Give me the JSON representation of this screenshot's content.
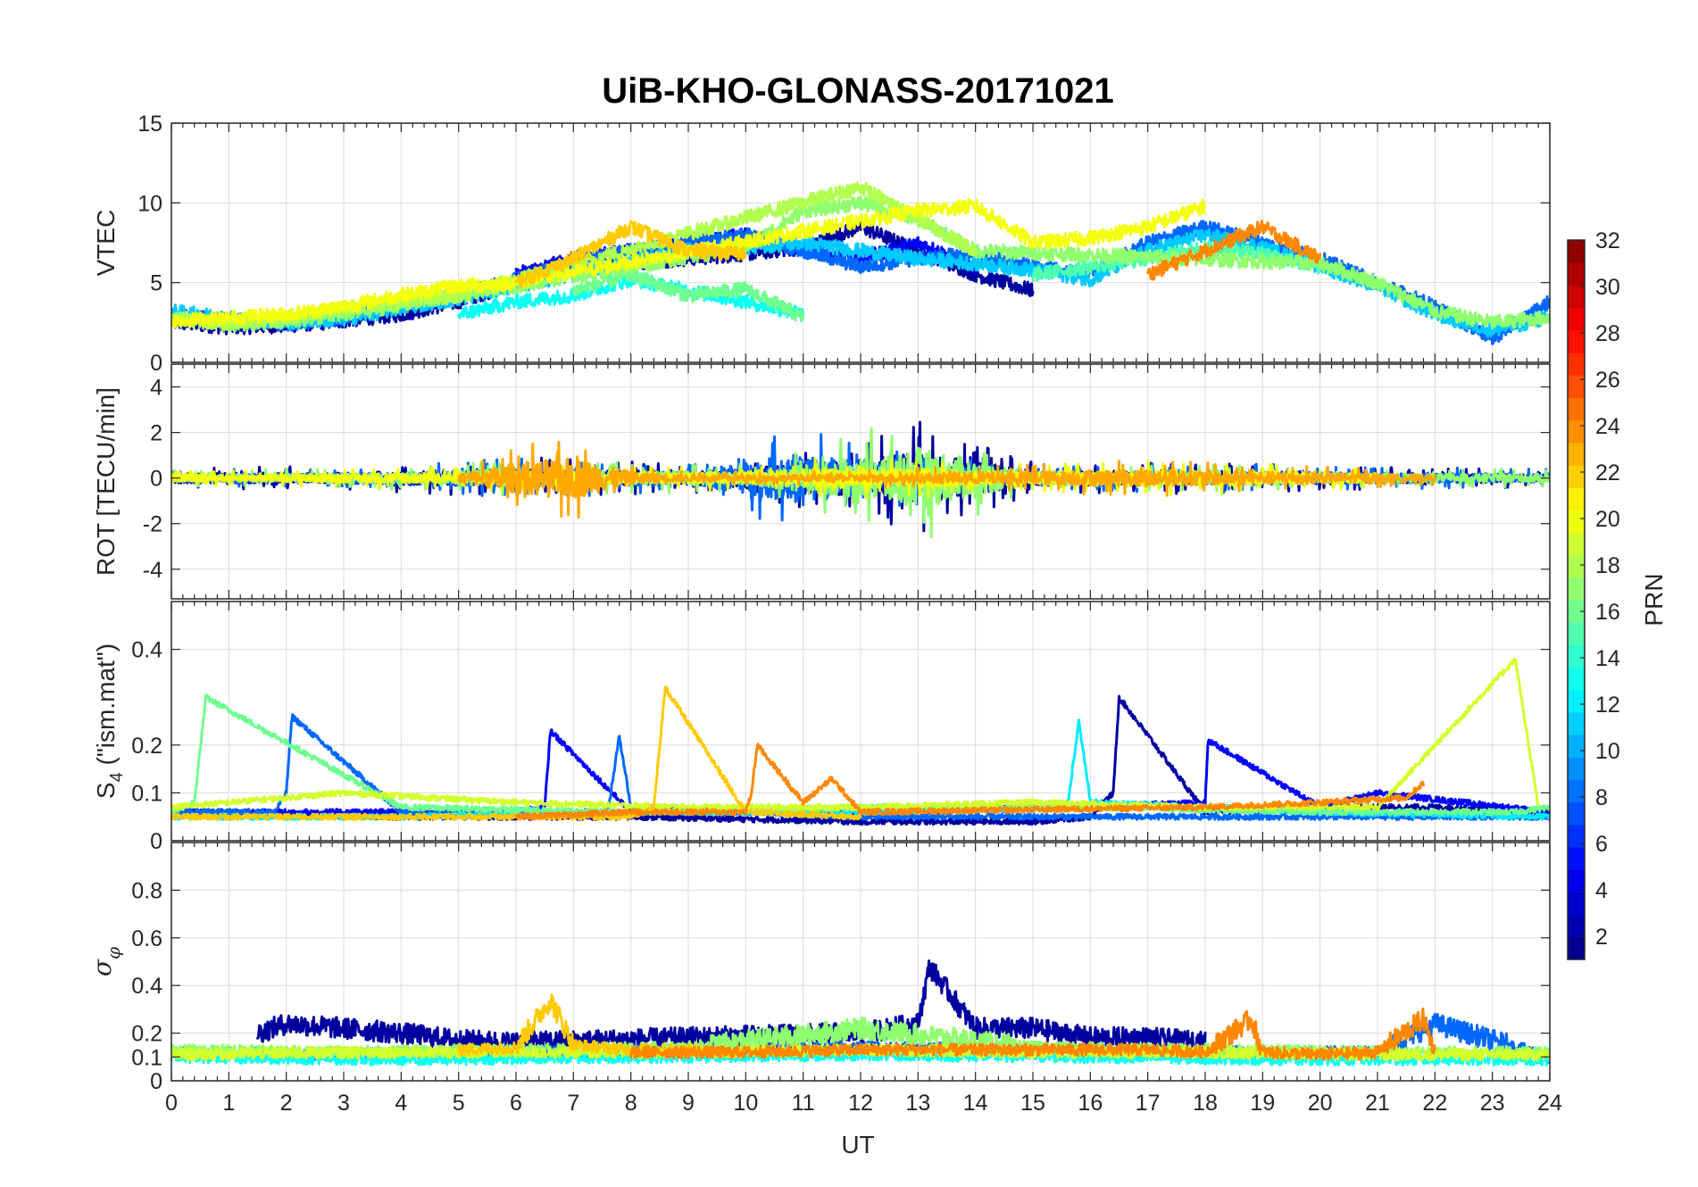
{
  "chart_data": {
    "type": "line",
    "title": "UiB-KHO-GLONASS-20171021",
    "xlabel": "UT",
    "xlim": [
      0,
      24
    ],
    "xticks": [
      0,
      1,
      2,
      3,
      4,
      5,
      6,
      7,
      8,
      9,
      10,
      11,
      12,
      13,
      14,
      15,
      16,
      17,
      18,
      19,
      20,
      21,
      22,
      23,
      24
    ],
    "grid": true,
    "panels": [
      {
        "id": "vtec",
        "ylabel": "VTEC",
        "ylim": [
          0,
          15
        ],
        "yticks": [
          0,
          5,
          10,
          15
        ],
        "series": [
          {
            "prn": 2,
            "x": [
              0,
              1,
              2,
              3,
              4,
              5,
              6,
              7,
              8,
              9,
              10,
              11,
              12,
              13,
              14,
              15
            ],
            "y": [
              2.5,
              2.2,
              2.3,
              2.6,
              3.0,
              3.8,
              5.0,
              6.0,
              6.2,
              6.5,
              6.8,
              7.2,
              8.5,
              7.0,
              5.5,
              4.5
            ]
          },
          {
            "prn": 5,
            "x": [
              6,
              7,
              8,
              9,
              10,
              11,
              12,
              13,
              14
            ],
            "y": [
              5.5,
              6.5,
              7.0,
              7.5,
              8.0,
              7.0,
              6.5,
              7.5,
              6.0
            ]
          },
          {
            "prn": 8,
            "x": [
              0,
              1,
              2,
              3,
              4,
              5,
              6,
              7,
              8,
              9,
              10,
              11,
              12,
              13,
              14,
              15,
              16,
              17,
              18,
              19,
              20,
              21,
              22,
              23,
              24
            ],
            "y": [
              3.0,
              2.6,
              2.4,
              2.8,
              3.5,
              4.2,
              5.2,
              6.2,
              7.0,
              7.5,
              8.0,
              7.0,
              6.0,
              6.5,
              6.8,
              6.0,
              5.5,
              7.5,
              8.5,
              7.5,
              6.5,
              5.0,
              3.5,
              1.5,
              3.8
            ]
          },
          {
            "prn": 11,
            "x": [
              0,
              1,
              2,
              3,
              4,
              5,
              6,
              7,
              8,
              9,
              10,
              11,
              12,
              13,
              14,
              15,
              16,
              17,
              18,
              19,
              20,
              21,
              22,
              23,
              24
            ],
            "y": [
              3.2,
              2.8,
              2.5,
              2.7,
              3.4,
              4.0,
              4.8,
              5.5,
              6.5,
              7.0,
              7.2,
              7.5,
              7.0,
              6.5,
              6.2,
              5.8,
              5.2,
              7.0,
              8.0,
              7.2,
              6.0,
              4.8,
              3.0,
              2.0,
              2.8
            ]
          },
          {
            "prn": 13,
            "x": [
              5,
              6,
              7,
              8,
              9,
              10,
              11
            ],
            "y": [
              3.0,
              3.8,
              4.2,
              5.2,
              4.5,
              3.8,
              3.0
            ]
          },
          {
            "prn": 15,
            "x": [
              15,
              16,
              17,
              18,
              19,
              20
            ],
            "y": [
              5.5,
              6.0,
              6.5,
              7.2,
              6.8,
              6.0
            ]
          },
          {
            "prn": 16,
            "x": [
              7,
              8,
              9,
              10,
              11
            ],
            "y": [
              4.5,
              5.5,
              4.2,
              4.6,
              2.8
            ]
          },
          {
            "prn": 17,
            "x": [
              0,
              1,
              2,
              3,
              4,
              10,
              11,
              12,
              13,
              14,
              20,
              21,
              22,
              23,
              24
            ],
            "y": [
              2.8,
              2.4,
              2.6,
              3.0,
              3.6,
              7.2,
              9.5,
              10.0,
              9.0,
              7.0,
              6.2,
              5.0,
              3.2,
              2.5,
              2.8
            ]
          },
          {
            "prn": 18,
            "x": [
              0,
              1,
              2,
              3,
              4,
              5,
              12,
              13,
              14
            ],
            "y": [
              2.7,
              2.5,
              2.8,
              3.4,
              3.8,
              4.2,
              11.0,
              9.0,
              7.0
            ]
          },
          {
            "prn": 20,
            "x": [
              0,
              1,
              2,
              3,
              4,
              5,
              6,
              13,
              14,
              15,
              16,
              17,
              18
            ],
            "y": [
              2.6,
              2.8,
              3.0,
              3.5,
              4.2,
              4.8,
              5.0,
              9.5,
              9.8,
              7.5,
              7.8,
              8.5,
              9.8
            ]
          },
          {
            "prn": 22,
            "x": [
              6,
              7,
              8,
              9,
              10
            ],
            "y": [
              5.0,
              6.5,
              8.5,
              7.0,
              6.8
            ]
          },
          {
            "prn": 24,
            "x": [
              17,
              18,
              19,
              20
            ],
            "y": [
              5.5,
              7.0,
              8.5,
              6.5
            ]
          }
        ]
      },
      {
        "id": "rot",
        "ylabel": "ROT [TECU/min]",
        "ylim": [
          -5.3,
          5.0
        ],
        "yticks": [
          -4,
          -2,
          0,
          2,
          4
        ],
        "series": [
          {
            "prn": 2,
            "x": [
              0,
              3,
              6,
              9,
              12,
              13,
              15,
              18,
              21,
              24
            ],
            "amp": [
              0.5,
              0.5,
              1.0,
              0.6,
              1.8,
              2.5,
              0.7,
              0.7,
              0.5,
              0.4
            ]
          },
          {
            "prn": 8,
            "x": [
              0,
              3,
              6,
              9,
              11,
              12,
              15,
              18,
              21,
              24
            ],
            "amp": [
              0.4,
              0.4,
              0.9,
              0.6,
              2.5,
              1.6,
              0.5,
              0.7,
              0.5,
              0.4
            ]
          },
          {
            "prn": 17,
            "x": [
              0,
              3,
              6,
              10,
              12,
              13,
              15,
              18,
              21,
              24
            ],
            "amp": [
              0.4,
              0.4,
              0.8,
              0.6,
              2.0,
              3.0,
              0.5,
              0.6,
              0.4,
              0.4
            ]
          },
          {
            "prn": 20,
            "x": [
              0,
              3,
              6,
              9,
              12,
              15,
              18,
              21
            ],
            "amp": [
              0.3,
              0.4,
              0.6,
              0.5,
              1.0,
              0.6,
              0.8,
              0.4
            ]
          },
          {
            "prn": 23,
            "x": [
              5,
              6,
              7,
              8,
              9,
              10,
              11,
              17,
              18,
              19,
              20,
              21,
              22
            ],
            "amp": [
              0.4,
              1.5,
              2.0,
              0.6,
              0.3,
              0.3,
              0.3,
              0.8,
              0.7,
              0.6,
              0.5,
              0.4,
              0.3
            ]
          }
        ]
      },
      {
        "id": "s4",
        "ylabel": "S4 (\"ism.mat\")",
        "ylim": [
          0,
          0.5
        ],
        "yticks": [
          0,
          0.1,
          0.2,
          0.4
        ],
        "series": [
          {
            "prn": 2,
            "x": [
              0,
              4,
              8,
              12,
              14,
              15,
              16,
              16.4,
              16.5,
              18,
              20,
              22,
              24
            ],
            "y": [
              0.06,
              0.05,
              0.05,
              0.04,
              0.04,
              0.04,
              0.05,
              0.1,
              0.3,
              0.06,
              0.07,
              0.07,
              0.06
            ]
          },
          {
            "prn": 5,
            "x": [
              0,
              3,
              6,
              6.5,
              6.6,
              8,
              10,
              12,
              16,
              18,
              18.05,
              20,
              21,
              24
            ],
            "y": [
              0.06,
              0.06,
              0.06,
              0.07,
              0.23,
              0.06,
              0.06,
              0.06,
              0.07,
              0.08,
              0.21,
              0.07,
              0.1,
              0.06
            ]
          },
          {
            "prn": 8,
            "x": [
              0,
              1.8,
              2.0,
              2.1,
              4,
              7.6,
              7.8,
              8.0,
              10,
              12,
              24
            ],
            "y": [
              0.06,
              0.06,
              0.1,
              0.26,
              0.06,
              0.06,
              0.22,
              0.07,
              0.06,
              0.05,
              0.05
            ]
          },
          {
            "prn": 12,
            "x": [
              0,
              4,
              8,
              12,
              15.6,
              15.8,
              16,
              20,
              24
            ],
            "y": [
              0.05,
              0.05,
              0.06,
              0.06,
              0.07,
              0.25,
              0.08,
              0.06,
              0.05
            ]
          },
          {
            "prn": 16,
            "x": [
              0,
              0.4,
              0.6,
              4,
              8,
              12,
              16,
              20,
              23.4,
              24
            ],
            "y": [
              0.06,
              0.08,
              0.3,
              0.07,
              0.06,
              0.07,
              0.07,
              0.06,
              0.06,
              0.07
            ]
          },
          {
            "prn": 19,
            "x": [
              0,
              3,
              6,
              9,
              12,
              15,
              18,
              21,
              23.4,
              23.8
            ],
            "y": [
              0.07,
              0.1,
              0.08,
              0.07,
              0.07,
              0.08,
              0.07,
              0.07,
              0.38,
              0.07
            ]
          },
          {
            "prn": 22,
            "x": [
              0,
              4,
              8,
              8.4,
              8.6,
              10,
              12
            ],
            "y": [
              0.05,
              0.05,
              0.05,
              0.07,
              0.32,
              0.06,
              0.05
            ]
          },
          {
            "prn": 24,
            "x": [
              6,
              8,
              10,
              10.1,
              10.2,
              11,
              11.5,
              12,
              18,
              20,
              21.5,
              21.8
            ],
            "y": [
              0.05,
              0.06,
              0.06,
              0.1,
              0.2,
              0.08,
              0.13,
              0.06,
              0.07,
              0.08,
              0.09,
              0.12
            ]
          }
        ]
      },
      {
        "id": "sigma",
        "ylabel": "σ φ",
        "ylim": [
          0,
          1.0
        ],
        "yticks": [
          0,
          0.1,
          0.2,
          0.4,
          0.6,
          0.8
        ],
        "series": [
          {
            "prn": 2,
            "x": [
              1.5,
              2,
              3,
              4,
              5,
              6,
              12,
              13,
              13.2,
              14,
              15,
              16,
              17,
              18
            ],
            "y": [
              0.2,
              0.24,
              0.22,
              0.2,
              0.17,
              0.16,
              0.2,
              0.24,
              0.48,
              0.22,
              0.22,
              0.18,
              0.18,
              0.16
            ]
          },
          {
            "prn": 8,
            "x": [
              0,
              3,
              6,
              9,
              12,
              15,
              18,
              21,
              22,
              24
            ],
            "y": [
              0.12,
              0.11,
              0.12,
              0.13,
              0.14,
              0.13,
              0.12,
              0.12,
              0.24,
              0.1
            ]
          },
          {
            "prn": 13,
            "x": [
              0,
              4,
              8,
              12,
              16,
              20,
              24
            ],
            "y": [
              0.1,
              0.09,
              0.1,
              0.11,
              0.1,
              0.09,
              0.09
            ]
          },
          {
            "prn": 17,
            "x": [
              0,
              3,
              6,
              9,
              12,
              15,
              18,
              21,
              24
            ],
            "y": [
              0.13,
              0.12,
              0.13,
              0.14,
              0.22,
              0.14,
              0.13,
              0.12,
              0.12
            ]
          },
          {
            "prn": 19,
            "x": [
              0,
              3,
              6,
              9,
              12,
              15,
              18,
              21,
              24
            ],
            "y": [
              0.11,
              0.12,
              0.12,
              0.12,
              0.13,
              0.12,
              0.12,
              0.11,
              0.11
            ]
          },
          {
            "prn": 22,
            "x": [
              5,
              6,
              6.6,
              7,
              8,
              9,
              10
            ],
            "y": [
              0.13,
              0.14,
              0.34,
              0.15,
              0.13,
              0.13,
              0.12
            ]
          },
          {
            "prn": 24,
            "x": [
              8,
              10,
              12,
              17,
              18,
              18.8,
              19,
              20,
              21,
              21.8,
              22
            ],
            "y": [
              0.12,
              0.12,
              0.13,
              0.13,
              0.12,
              0.26,
              0.12,
              0.11,
              0.12,
              0.26,
              0.12
            ]
          }
        ]
      }
    ],
    "colorbar": {
      "label": "PRN",
      "colormap": "jet",
      "range": [
        1,
        32
      ],
      "ticks": [
        2,
        4,
        6,
        8,
        10,
        12,
        14,
        16,
        18,
        20,
        22,
        24,
        26,
        28,
        30,
        32
      ],
      "levels": 32
    }
  }
}
